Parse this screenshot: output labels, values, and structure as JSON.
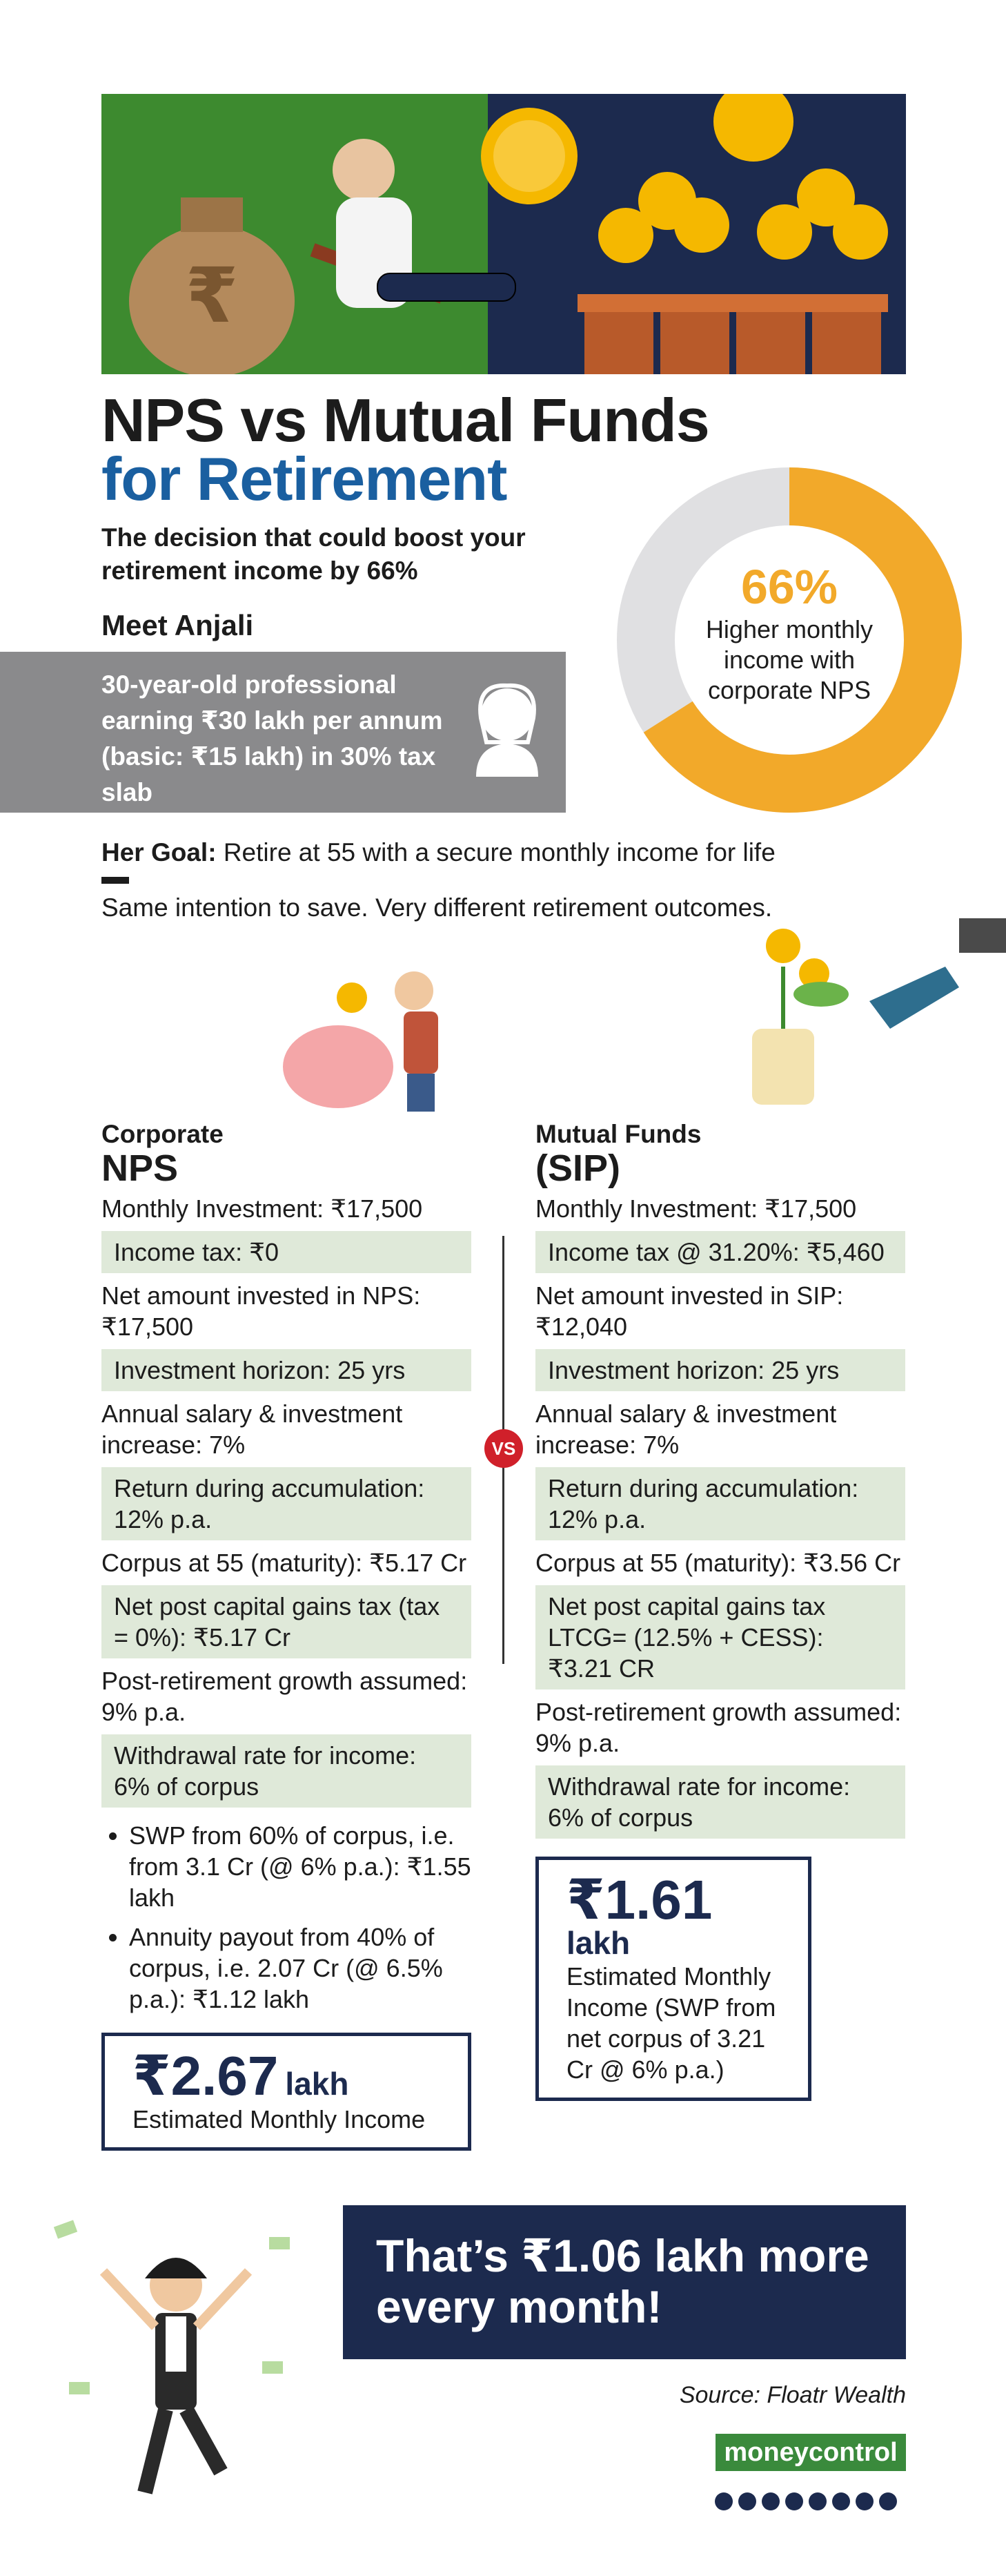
{
  "header": {
    "title_line1": "NPS vs Mutual Funds",
    "title_line2": "for Retirement",
    "subtitle": "The decision that could boost your retirement income by 66%"
  },
  "donut": {
    "value": 66,
    "label": "66%",
    "caption": "Higher monthly income with corporate NPS"
  },
  "persona": {
    "heading": "Meet Anjali",
    "description": "30-year-old professional earning ₹30 lakh per annum (basic: ₹15 lakh) in 30% tax slab"
  },
  "goal": {
    "label": "Her Goal:",
    "text": "Retire at 55 with a secure monthly income for life",
    "tagline": "Same intention to save. Very different retirement outcomes."
  },
  "vs": "VS",
  "nps": {
    "heading_small": "Corporate",
    "heading_big": "NPS",
    "items": [
      "Monthly Investment: ₹17,500",
      "Income tax: ₹0",
      "Net amount invested in NPS: ₹17,500",
      "Investment horizon: 25 yrs",
      "Annual salary & investment increase: 7%",
      "Return during accumulation: 12% p.a.",
      "Corpus at 55 (maturity): ₹5.17 Cr",
      "Net post capital gains tax (tax = 0%): ₹5.17 Cr",
      "Post-retirement growth assumed: 9% p.a.",
      "Withdrawal rate for income: 6% of corpus"
    ],
    "bullets": [
      "SWP from 60% of corpus, i.e. from 3.1 Cr (@ 6% p.a.): ₹1.55 lakh",
      "Annuity payout from 40% of corpus, i.e. 2.07 Cr (@ 6.5% p.a.): ₹1.12 lakh"
    ],
    "result": {
      "amount": "₹2.67",
      "unit": "lakh",
      "caption": "Estimated Monthly Income"
    }
  },
  "mf": {
    "heading_small": "Mutual Funds",
    "heading_big": "(SIP)",
    "items": [
      "Monthly Investment: ₹17,500",
      "Income tax @ 31.20%: ₹5,460",
      "Net amount invested in SIP: ₹12,040",
      "Investment horizon: 25 yrs",
      "Annual salary & investment increase: 7%",
      "Return during accumulation: 12% p.a.",
      "Corpus at 55 (maturity): ₹3.56 Cr",
      "Net post capital gains tax LTCG= (12.5% + CESS): ₹3.21 CR",
      "Post-retirement growth assumed: 9% p.a.",
      "Withdrawal rate for income: 6% of corpus"
    ],
    "result": {
      "amount": "₹1.61",
      "unit": "lakh",
      "caption": "Estimated Monthly Income (SWP from net corpus of 3.21 Cr @ 6% p.a.)"
    }
  },
  "banner": "That’s ₹1.06 lakh more every month!",
  "footer": {
    "source": "Source: Floatr Wealth",
    "logo": "moneycontrol"
  }
}
